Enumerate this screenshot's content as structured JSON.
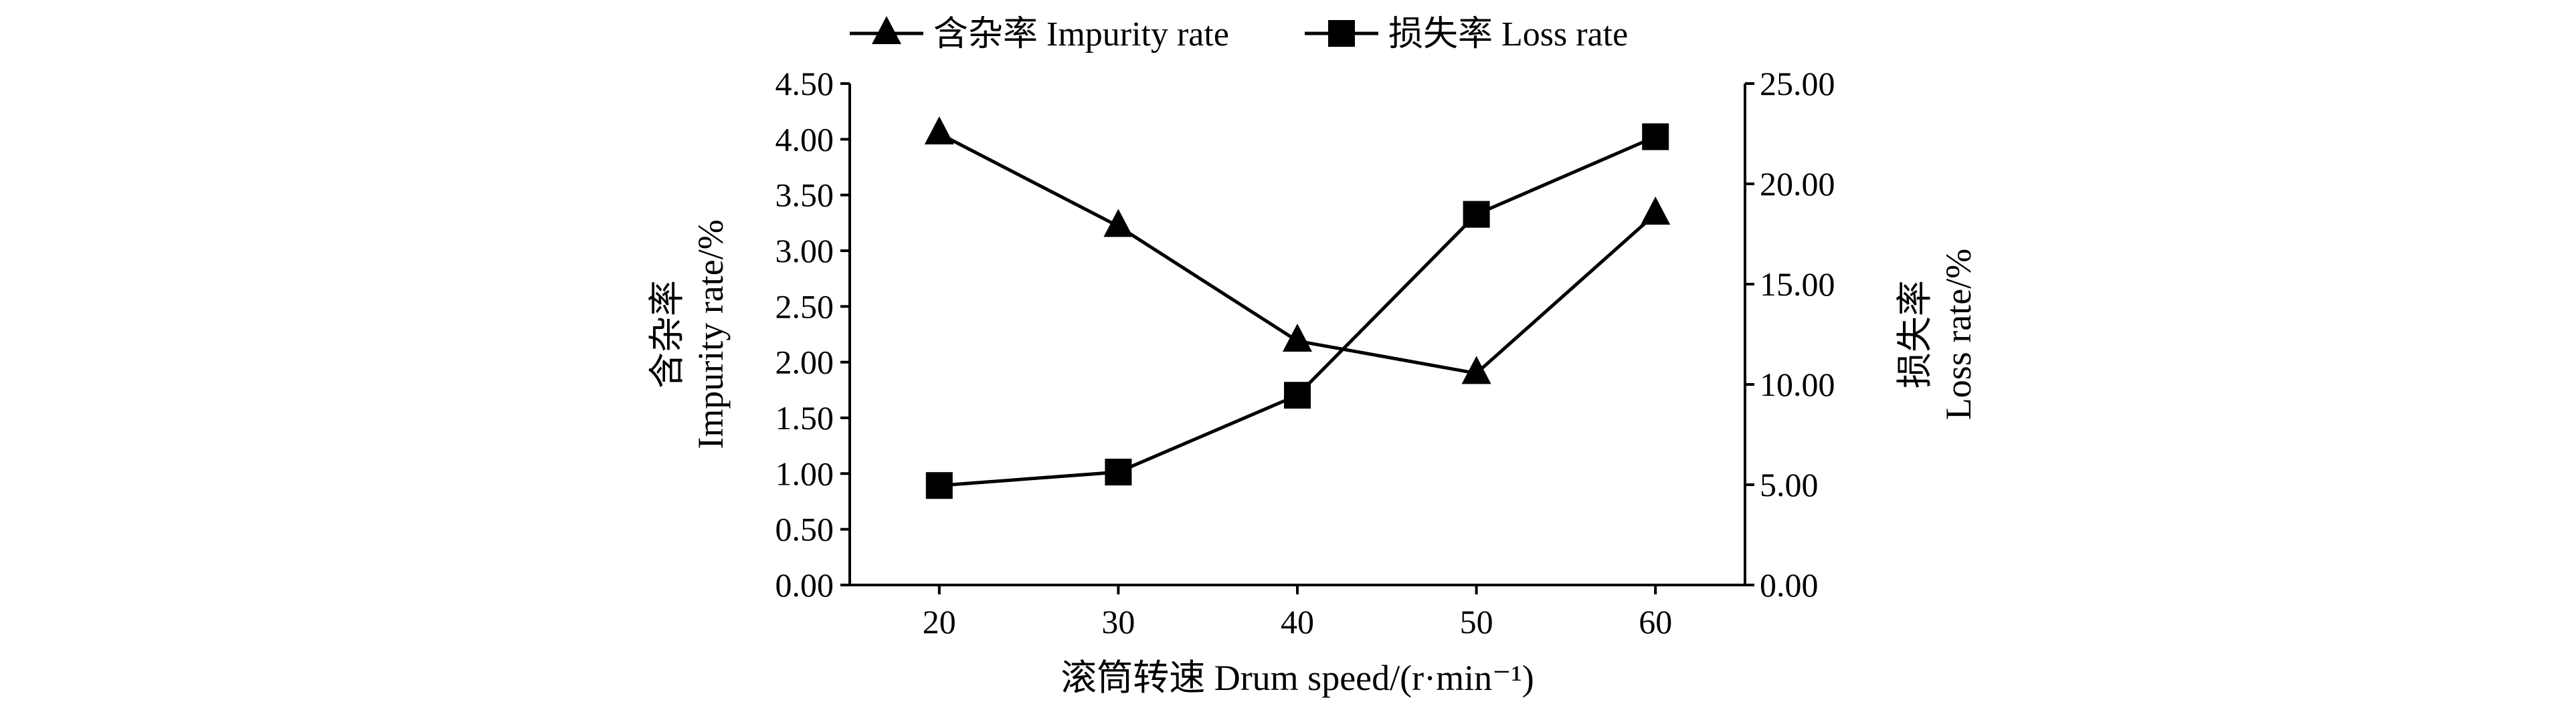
{
  "chart_data": {
    "type": "line",
    "title": "",
    "xlabel": "滚筒转速 Drum speed/(r·min⁻¹)",
    "ylabel_left": [
      "含杂率",
      "Impurity rate/%"
    ],
    "ylabel_right": [
      "损失率",
      "Loss rate/%"
    ],
    "x": [
      20,
      30,
      40,
      50,
      60
    ],
    "x_ticks": [
      "20",
      "30",
      "40",
      "50",
      "60"
    ],
    "ylim_left": [
      0,
      4.5
    ],
    "ylim_right": [
      0,
      25
    ],
    "y_ticks_left": [
      "0.00",
      "0.50",
      "1.00",
      "1.50",
      "2.00",
      "2.50",
      "3.00",
      "3.50",
      "4.00",
      "4.50"
    ],
    "y_ticks_right": [
      "0.00",
      "5.00",
      "10.00",
      "15.00",
      "20.00",
      "25.00"
    ],
    "grid": false,
    "legend_position": "top",
    "series": [
      {
        "name": "含杂率 Impurity rate",
        "axis": "left",
        "marker": "triangle",
        "values": [
          4.05,
          3.22,
          2.19,
          1.9,
          3.33
        ]
      },
      {
        "name": "损失率 Loss rate",
        "axis": "right",
        "marker": "square",
        "values": [
          4.96,
          5.63,
          9.46,
          18.48,
          22.35
        ]
      }
    ]
  }
}
